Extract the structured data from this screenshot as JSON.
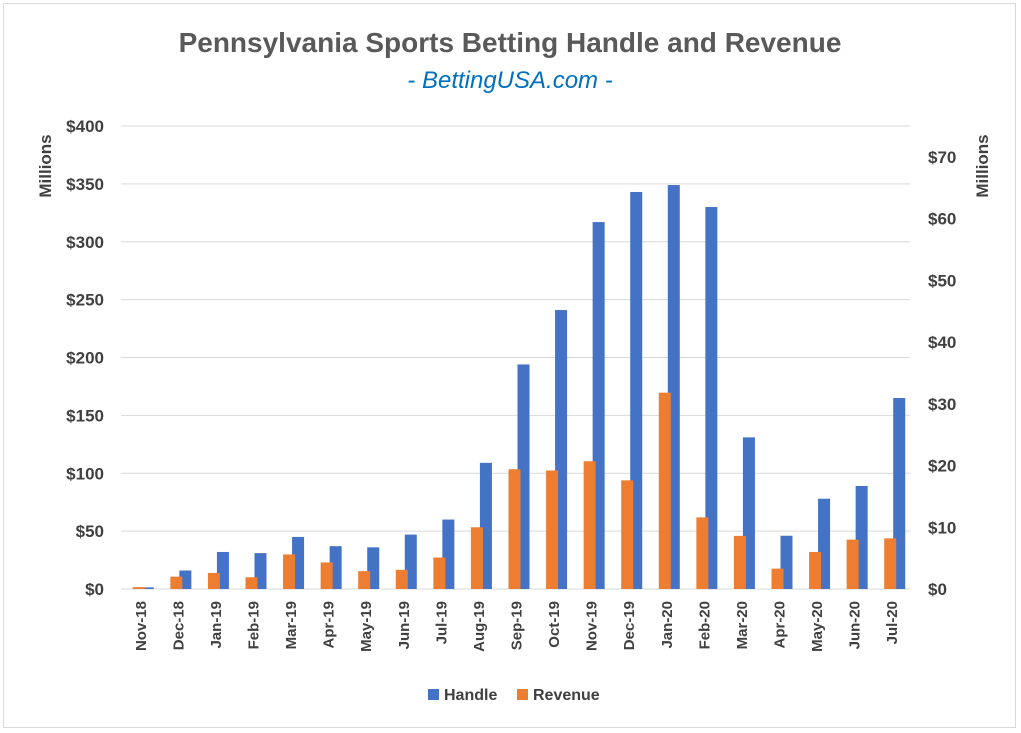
{
  "chart_data": {
    "type": "bar",
    "title": "Pennsylvania Sports Betting Handle and Revenue",
    "subtitle": "- BettingUSA.com -",
    "categories": [
      "Nov-18",
      "Dec-18",
      "Jan-19",
      "Feb-19",
      "Mar-19",
      "Apr-19",
      "May-19",
      "Jun-19",
      "Jul-19",
      "Aug-19",
      "Sep-19",
      "Oct-19",
      "Nov-19",
      "Dec-19",
      "Jan-20",
      "Feb-20",
      "Mar-20",
      "Apr-20",
      "May-20",
      "Jun-20",
      "Jul-20"
    ],
    "series": [
      {
        "name": "Handle",
        "axis": "left",
        "color": "#4472c4",
        "values": [
          1.4,
          16,
          32,
          31,
          45,
          37,
          36,
          47,
          60,
          109,
          194,
          241,
          317,
          343,
          349,
          330,
          131,
          46,
          78,
          89,
          165
        ]
      },
      {
        "name": "Revenue",
        "axis": "right",
        "color": "#ed7d31",
        "values": [
          0.3,
          2.0,
          2.6,
          1.9,
          5.6,
          4.3,
          2.9,
          3.1,
          5.1,
          10.0,
          19.4,
          19.2,
          20.7,
          17.6,
          31.8,
          11.6,
          8.6,
          3.3,
          6.0,
          8.0,
          8.2
        ]
      }
    ],
    "y_left": {
      "label": "Millions",
      "ylim": [
        0,
        400
      ],
      "ticks": [
        "$0",
        "$50",
        "$100",
        "$150",
        "$200",
        "$250",
        "$300",
        "$350",
        "$400"
      ]
    },
    "y_right": {
      "label": "Millions",
      "ylim": [
        0,
        75
      ],
      "ticks": [
        "$0",
        "$10",
        "$20",
        "$30",
        "$40",
        "$50",
        "$60",
        "$70"
      ]
    },
    "grid": true,
    "legend_position": "bottom"
  }
}
